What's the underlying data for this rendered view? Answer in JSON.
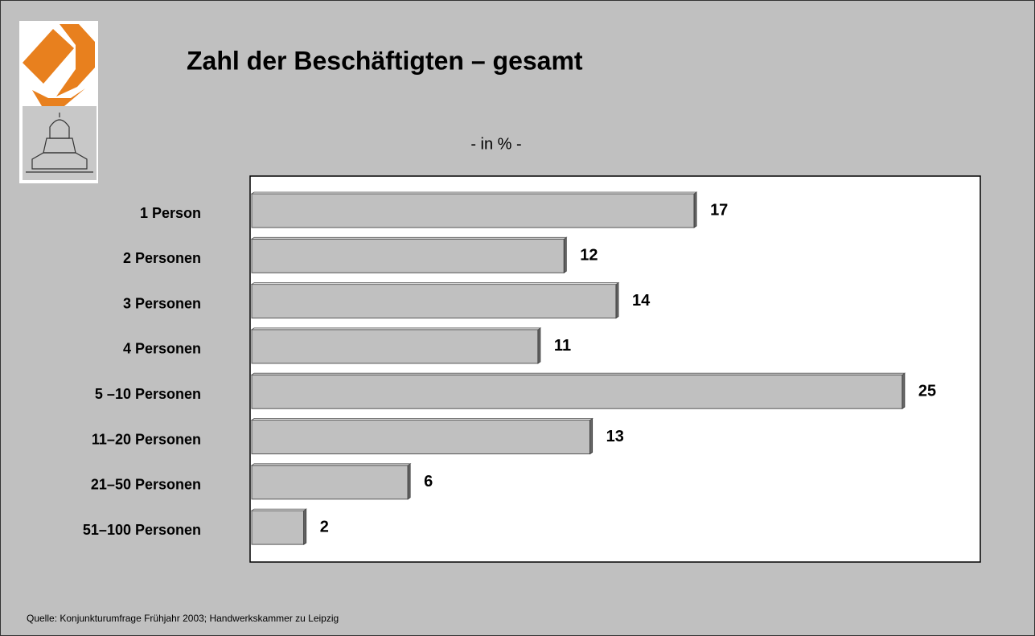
{
  "chart_data": {
    "type": "bar",
    "orientation": "horizontal",
    "title": "Zahl der Beschäftigten – gesamt",
    "subtitle": "- in %  -",
    "source": "Quelle: Konjunkturumfrage Frühjahr 2003; Handwerkskammer zu Leipzig",
    "categories": [
      "1 Person",
      "2 Personen",
      "3 Personen",
      "4 Personen",
      "5 –10 Personen",
      "11–20 Personen",
      "21–50 Personen",
      "51–100 Personen"
    ],
    "values": [
      17,
      12,
      14,
      11,
      25,
      13,
      6,
      2
    ],
    "color": "#c0c0c0",
    "xlim": [
      0,
      28
    ]
  }
}
